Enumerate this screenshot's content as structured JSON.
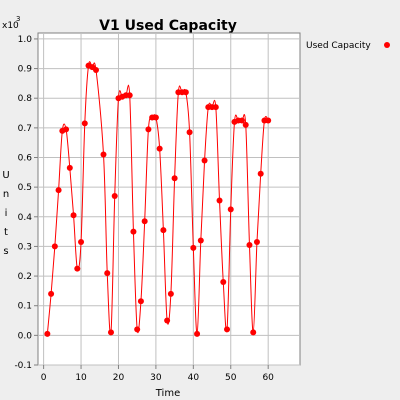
{
  "chart_data": {
    "type": "line",
    "title": "V1 Used Capacity",
    "xlabel": "Time",
    "ylabel": "Units",
    "y_multiplier": "x10",
    "y_multiplier_exp": "3",
    "xlim": [
      -1.5,
      68.5
    ],
    "ylim": [
      -0.1,
      1.02
    ],
    "xticks": [
      0,
      10,
      20,
      30,
      40,
      50,
      60
    ],
    "yticks": [
      -0.1,
      0.0,
      0.1,
      0.2,
      0.3,
      0.4,
      0.5,
      0.6,
      0.7,
      0.8,
      0.9,
      1.0
    ],
    "ytick_labels": [
      "-0.1",
      "0.0",
      "0.1",
      "0.2",
      "0.3",
      "0.4",
      "0.5",
      "0.6",
      "0.7",
      "0.8",
      "0.9",
      "1.0"
    ],
    "grid": true,
    "legend_position": "top-right",
    "series": [
      {
        "name": "Used Capacity",
        "color": "#ff0000",
        "x": [
          1,
          2,
          3,
          4,
          5,
          6,
          7,
          8,
          9,
          10,
          11,
          12,
          13,
          14,
          16,
          17,
          18,
          19,
          20,
          21,
          22,
          23,
          24,
          25,
          26,
          27,
          28,
          29,
          30,
          31,
          32,
          33,
          34,
          35,
          36,
          37,
          38,
          39,
          40,
          41,
          42,
          43,
          44,
          45,
          46,
          47,
          48,
          49,
          50,
          51,
          52,
          53,
          54,
          55,
          56,
          57,
          58,
          59,
          60
        ],
        "y": [
          0.005,
          0.14,
          0.3,
          0.49,
          0.69,
          0.695,
          0.565,
          0.405,
          0.225,
          0.315,
          0.715,
          0.91,
          0.905,
          0.895,
          0.61,
          0.21,
          0.01,
          0.47,
          0.8,
          0.805,
          0.81,
          0.81,
          0.35,
          0.02,
          0.115,
          0.385,
          0.695,
          0.735,
          0.735,
          0.63,
          0.355,
          0.05,
          0.14,
          0.53,
          0.82,
          0.82,
          0.82,
          0.685,
          0.295,
          0.005,
          0.32,
          0.59,
          0.77,
          0.77,
          0.77,
          0.455,
          0.18,
          0.02,
          0.425,
          0.72,
          0.725,
          0.725,
          0.71,
          0.305,
          0.01,
          0.315,
          0.545,
          0.725,
          0.725
        ]
      }
    ]
  }
}
